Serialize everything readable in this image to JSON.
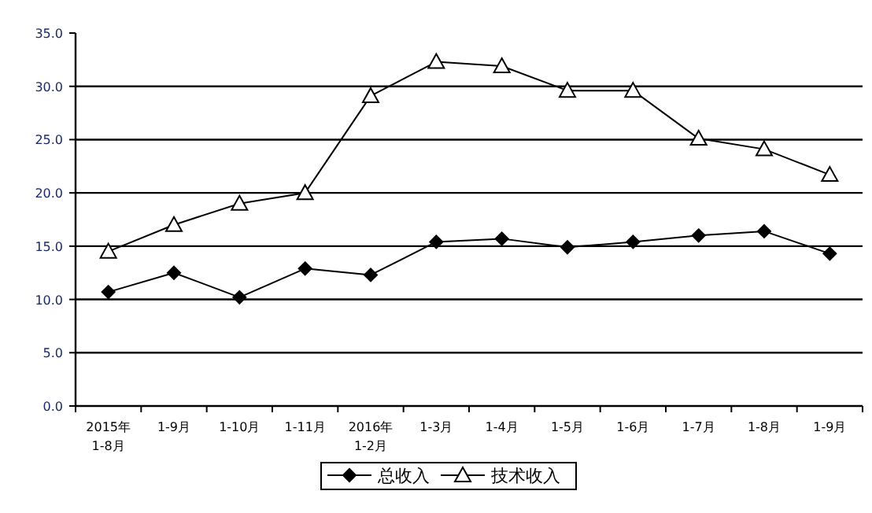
{
  "chart_data": {
    "type": "line",
    "categories": [
      "2015年\n1-8月",
      "1-9月",
      "1-10月",
      "1-11月",
      "2016年\n1-2月",
      "1-3月",
      "1-4月",
      "1-5月",
      "1-6月",
      "1-7月",
      "1-8月",
      "1-9月"
    ],
    "series": [
      {
        "name": "总收入",
        "color": "#000000",
        "marker": "diamond",
        "values": [
          10.7,
          12.5,
          10.2,
          12.9,
          12.3,
          15.4,
          15.7,
          14.9,
          15.4,
          16.0,
          16.4,
          14.3
        ]
      },
      {
        "name": "技术收入",
        "color": "#000000",
        "marker": "triangle",
        "values": [
          14.5,
          17.0,
          19.0,
          20.0,
          29.1,
          32.3,
          31.9,
          29.6,
          29.6,
          25.1,
          24.1,
          21.7
        ]
      }
    ],
    "ylim": [
      0,
      35
    ],
    "yticks": [
      {
        "value": 0,
        "label": "0.0"
      },
      {
        "value": 5,
        "label": "5.0"
      },
      {
        "value": 10,
        "label": "10.0"
      },
      {
        "value": 15,
        "label": "15.0"
      },
      {
        "value": 20,
        "label": "20.0"
      },
      {
        "value": 25,
        "label": "25.0"
      },
      {
        "value": 30,
        "label": "30.0"
      },
      {
        "value": 35,
        "label": "35.0"
      }
    ],
    "grid": "y",
    "legend": "bottom",
    "line_style": "solid"
  }
}
